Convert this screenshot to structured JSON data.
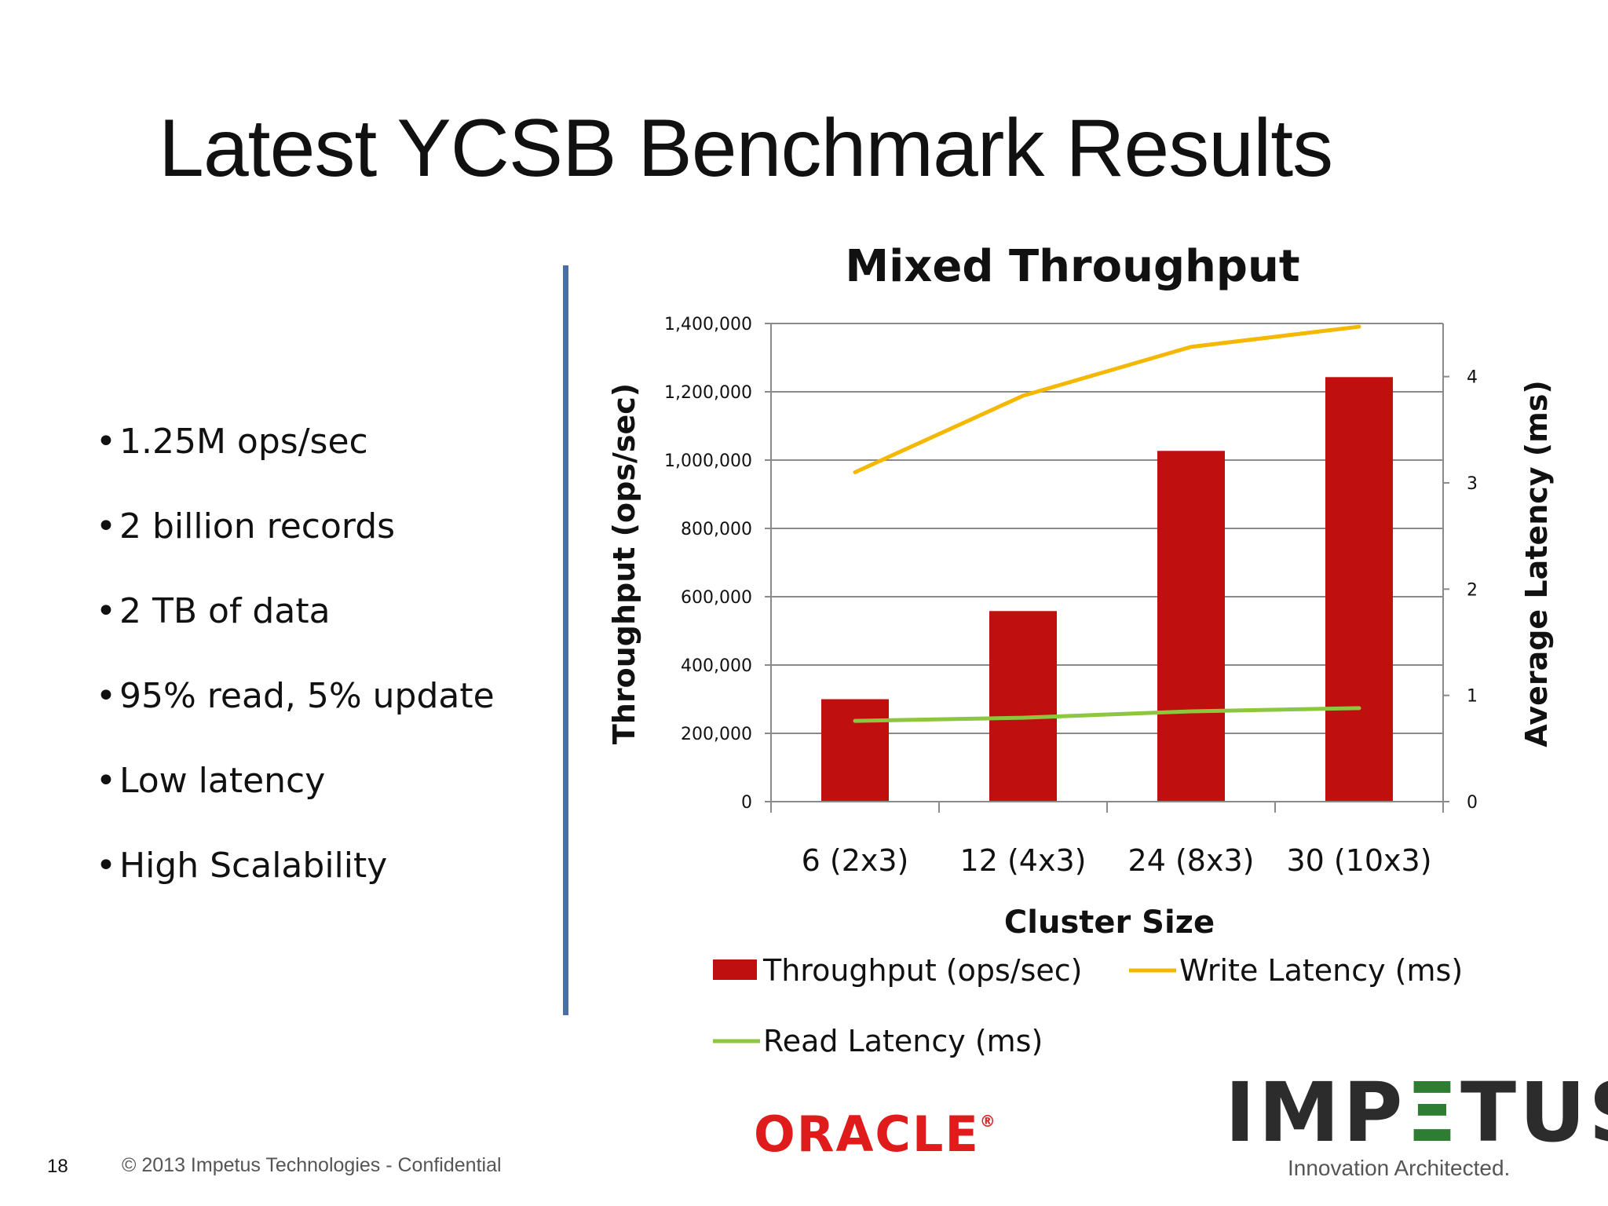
{
  "slide": {
    "title": "Latest YCSB Benchmark Results",
    "bullets": [
      "1.25M ops/sec",
      "2 billion records",
      "2 TB of data",
      "95% read, 5% update",
      "Low latency",
      "High Scalability"
    ],
    "bullet_glyph": "•",
    "footer": {
      "page_number": "18",
      "copyright": "© 2013 Impetus Technologies - Confidential"
    },
    "logos": {
      "oracle": "ORACLE",
      "oracle_mark": "®",
      "impetus_prefix": "IMP",
      "impetus_e": "Ξ",
      "impetus_suffix": "TUS",
      "impetus_tagline": "Innovation Architected."
    },
    "colors": {
      "divider": "#4a6fa5",
      "oracle_red": "#e01b1b",
      "impetus_green": "#2e7d32"
    }
  },
  "chart_data": {
    "type": "bar",
    "title": "Mixed Throughput",
    "xlabel": "Cluster Size",
    "ylabel": "Throughput (ops/sec)",
    "y2label": "Average Latency (ms)",
    "categories": [
      "6 (2x3)",
      "12 (4x3)",
      "24 (8x3)",
      "30 (10x3)"
    ],
    "ylim": [
      0,
      1400000
    ],
    "y_ticks": [
      0,
      200000,
      400000,
      600000,
      800000,
      1000000,
      1200000,
      1400000
    ],
    "y_tick_labels": [
      "0",
      "200,000",
      "400,000",
      "600,000",
      "800,000",
      "1,000,000",
      "1,200,000",
      "1,400,000"
    ],
    "y2lim": [
      0,
      4.5
    ],
    "y2_ticks": [
      0,
      1,
      2,
      3,
      4
    ],
    "y2_tick_labels": [
      "0",
      "1",
      "2",
      "3",
      "4"
    ],
    "grid": true,
    "legend_position": "bottom",
    "series": [
      {
        "name": "Throughput (ops/sec)",
        "kind": "bar",
        "axis": "left",
        "color": "#c00f0f",
        "values": [
          300000,
          558000,
          1027000,
          1243000
        ]
      },
      {
        "name": "Write Latency (ms)",
        "kind": "line",
        "axis": "right",
        "color": "#f5b800",
        "values": [
          3.1,
          3.82,
          4.28,
          4.47
        ]
      },
      {
        "name": "Read Latency (ms)",
        "kind": "line",
        "axis": "right",
        "color": "#8dc63f",
        "values": [
          0.76,
          0.79,
          0.85,
          0.88
        ]
      }
    ]
  }
}
